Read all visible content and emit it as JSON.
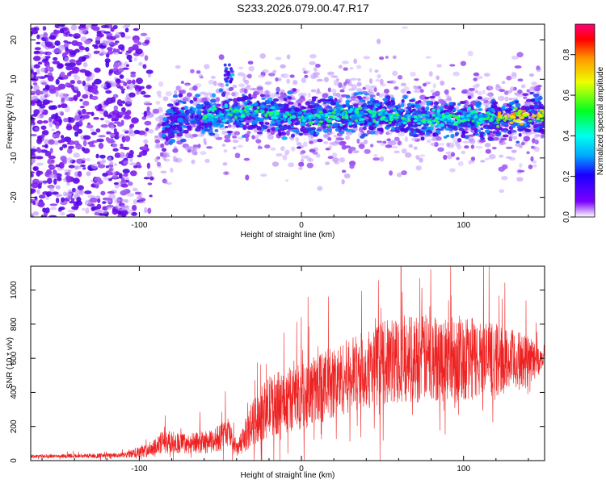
{
  "title": "S233.2026.079.00.47.R17",
  "colors": {
    "axis": "#000000",
    "snr_line": "#ee2222",
    "spectrogram_base": "#6a11e6"
  },
  "chart_data": [
    {
      "type": "heatmap",
      "name": "spectrogram",
      "xlabel": "Height of straight line (km)",
      "ylabel": "Frequency (Hz)",
      "xlim": [
        -167,
        150
      ],
      "ylim": [
        -25,
        24
      ],
      "xticks": [
        -100,
        0,
        100
      ],
      "xtick_labels": [
        "-100",
        "0",
        "100"
      ],
      "yticks": [
        -20,
        -10,
        0,
        10,
        20
      ],
      "ytick_labels": [
        "-20",
        "-10",
        "0",
        "10",
        "20"
      ],
      "colorbar": {
        "label": "Normalized spectral amplitude",
        "range": [
          0,
          0.95
        ],
        "ticks": [
          0,
          0.2,
          0.4,
          0.6,
          0.8
        ],
        "tick_labels": [
          "0.0",
          "0.2",
          "0.4",
          "0.6",
          "0.8"
        ]
      },
      "signal_band": {
        "center_freq_hz": [
          {
            "x": -167,
            "f": 0
          },
          {
            "x": -100,
            "f": -1
          },
          {
            "x": -85,
            "f": -3
          },
          {
            "x": -75,
            "f": 0
          },
          {
            "x": -50,
            "f": 1
          },
          {
            "x": -30,
            "f": 2
          },
          {
            "x": 0,
            "f": 0
          },
          {
            "x": 40,
            "f": 1
          },
          {
            "x": 80,
            "f": 0
          },
          {
            "x": 120,
            "f": 0
          },
          {
            "x": 150,
            "f": 1
          }
        ],
        "noise_region_x": [
          -167,
          -100
        ],
        "coherent_region_x": [
          -85,
          150
        ]
      }
    },
    {
      "type": "line",
      "name": "snr",
      "xlabel": "Height of straight line (km)",
      "ylabel": "SNR (10 * v/v)",
      "xlim": [
        -167,
        150
      ],
      "ylim": [
        0,
        1140
      ],
      "xticks": [
        -100,
        0,
        100
      ],
      "xtick_labels": [
        "-100",
        "0",
        "100"
      ],
      "yticks": [
        0,
        200,
        400,
        600,
        800,
        1000
      ],
      "ytick_labels": [
        "0",
        "200",
        "400",
        "600",
        "800",
        "1000"
      ],
      "envelope": [
        {
          "x": -167,
          "mean": 25,
          "spread": 10
        },
        {
          "x": -110,
          "mean": 30,
          "spread": 15
        },
        {
          "x": -95,
          "mean": 60,
          "spread": 40
        },
        {
          "x": -85,
          "mean": 110,
          "spread": 70
        },
        {
          "x": -70,
          "mean": 100,
          "spread": 60
        },
        {
          "x": -55,
          "mean": 110,
          "spread": 70
        },
        {
          "x": -45,
          "mean": 170,
          "spread": 90
        },
        {
          "x": -40,
          "mean": 60,
          "spread": 40
        },
        {
          "x": -30,
          "mean": 220,
          "spread": 140
        },
        {
          "x": -20,
          "mean": 320,
          "spread": 180
        },
        {
          "x": 0,
          "mean": 380,
          "spread": 200
        },
        {
          "x": 30,
          "mean": 500,
          "spread": 220
        },
        {
          "x": 60,
          "mean": 600,
          "spread": 260
        },
        {
          "x": 100,
          "mean": 600,
          "spread": 260
        },
        {
          "x": 140,
          "mean": 580,
          "spread": 160
        },
        {
          "x": 150,
          "mean": 600,
          "spread": 30
        }
      ]
    }
  ]
}
